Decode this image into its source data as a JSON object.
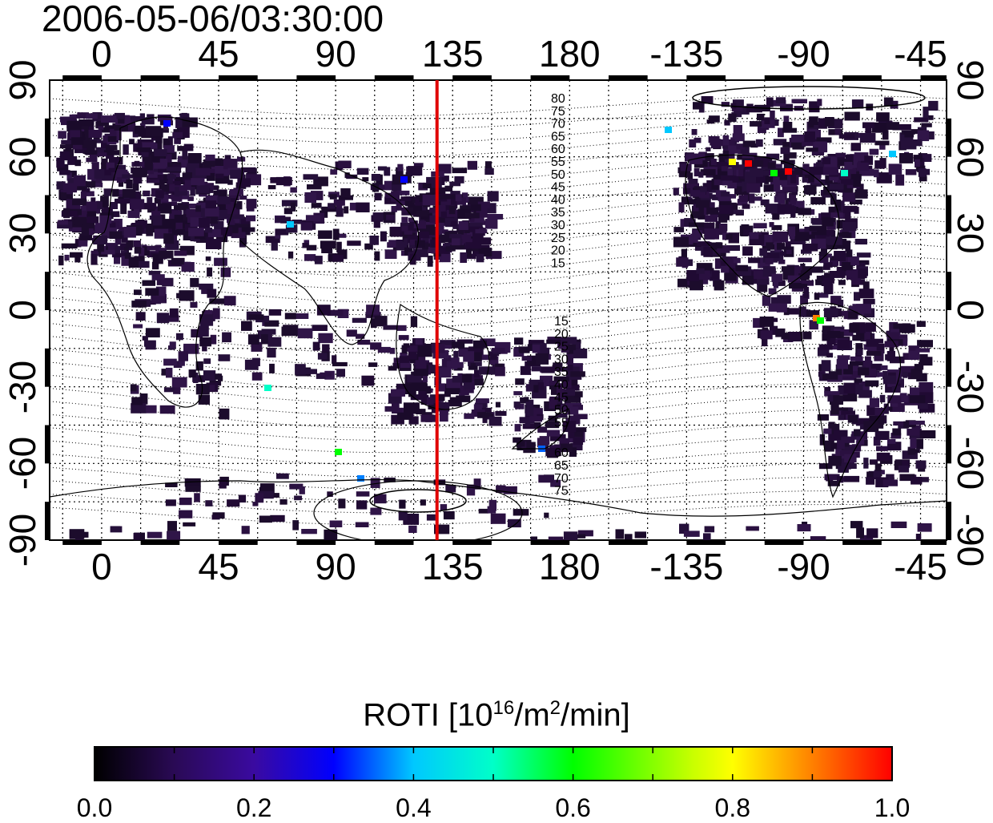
{
  "title": "2006-05-06/03:30:00",
  "map": {
    "type": "global ROTI map",
    "x_tick_labels": [
      "0",
      "45",
      "90",
      "135",
      "180",
      "-135",
      "-90",
      "-45"
    ],
    "y_tick_labels_left": [
      "90",
      "60",
      "30",
      "0",
      "-30",
      "-60",
      "-90"
    ],
    "y_tick_labels_right": [
      "90",
      "60",
      "30",
      "0",
      "-30",
      "-60",
      "-90"
    ],
    "lon_range": [
      -20,
      325
    ],
    "lat_range": [
      -90,
      90
    ],
    "grid": true,
    "meridian_marker_lon": 129,
    "meridian_marker_color": "#e00000",
    "contour_labels_north": [
      "80",
      "75",
      "70",
      "65",
      "60",
      "55",
      "50",
      "45",
      "40",
      "35",
      "30",
      "25",
      "20",
      "15"
    ],
    "contour_labels_south": [
      "15",
      "20",
      "25",
      "30",
      "35",
      "40",
      "45",
      "50",
      "55",
      "60",
      "65",
      "70",
      "75"
    ]
  },
  "colorbar": {
    "label_main": "ROTI  [10",
    "label_sup1": "16",
    "label_mid": "/m",
    "label_sup2": "2",
    "label_end": "/min]",
    "ticks": [
      "0.0",
      "0.2",
      "0.4",
      "0.6",
      "0.8",
      "1.0"
    ],
    "range": [
      0.0,
      1.0
    ],
    "colors": [
      "#000000",
      "#3a0a6e",
      "#0000ff",
      "#00ffff",
      "#00ff00",
      "#ffff00",
      "#ff0000"
    ]
  }
}
